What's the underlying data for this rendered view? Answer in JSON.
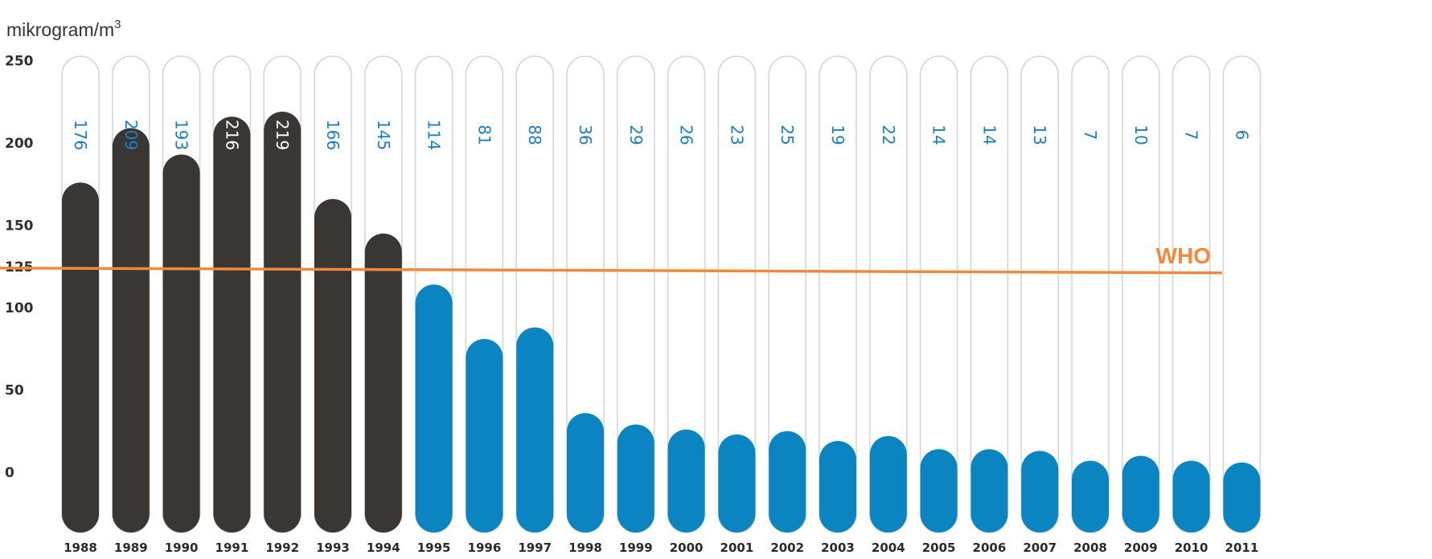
{
  "chart_data": {
    "type": "bar",
    "ylabel_text": "mikrogram/m",
    "ylabel_superscript": "3",
    "categories": [
      "1988",
      "1989",
      "1990",
      "1991",
      "1992",
      "1993",
      "1994",
      "1995",
      "1996",
      "1997",
      "1998",
      "1999",
      "2000",
      "2001",
      "2002",
      "2003",
      "2004",
      "2005",
      "2006",
      "2007",
      "2008",
      "2009",
      "2010",
      "2011"
    ],
    "values": [
      176,
      209,
      193,
      216,
      219,
      166,
      145,
      114,
      81,
      88,
      36,
      29,
      26,
      23,
      25,
      19,
      22,
      14,
      14,
      13,
      7,
      10,
      7,
      6
    ],
    "value_labels": [
      "176",
      "209",
      "193",
      "216",
      "219",
      "166",
      "145",
      "114",
      "81",
      "88",
      "36",
      "29",
      "26",
      "23",
      "25",
      "19",
      "22",
      "14",
      "14",
      "13",
      "7",
      "10",
      "7",
      "6"
    ],
    "yticks": [
      {
        "value": 0,
        "label": "0"
      },
      {
        "value": 50,
        "label": "50"
      },
      {
        "value": 100,
        "label": "100"
      },
      {
        "value": 125,
        "label": "125"
      },
      {
        "value": 150,
        "label": "150"
      },
      {
        "value": 200,
        "label": "200"
      },
      {
        "value": 250,
        "label": "250"
      }
    ],
    "ylim": [
      0,
      250
    ],
    "reference_line": {
      "value": 125,
      "label": "WHO",
      "color": "#f0893c"
    },
    "colors": {
      "dark": "#3a3634",
      "blue": "#0a85c2",
      "outline": "#d6d6d6",
      "label_blue": "#1a7fc0",
      "label_light": "#ffffff"
    }
  }
}
